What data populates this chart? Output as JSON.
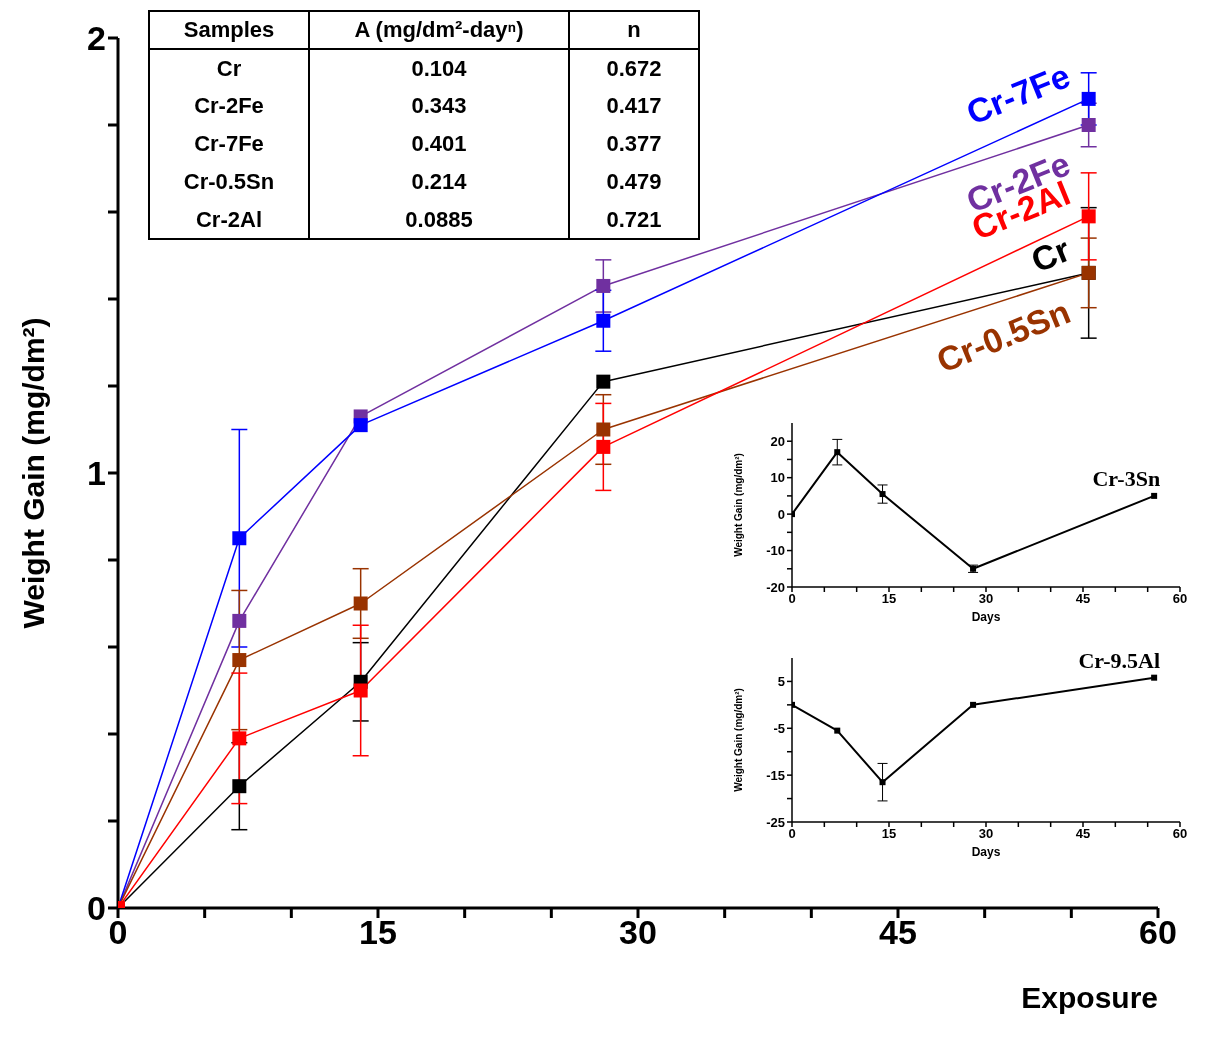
{
  "chart_data": [
    {
      "type": "line",
      "xlabel": "Exposure",
      "ylabel": "Weight Gain (mg/dm²)",
      "xlim": [
        0,
        60
      ],
      "xticks": [
        0,
        {
          "value": 5,
          "label": null
        },
        {
          "value": 10,
          "label": null
        },
        15,
        {
          "value": 20,
          "label": null
        },
        {
          "value": 25,
          "label": null
        },
        30,
        {
          "value": 35,
          "label": null
        },
        {
          "value": 40,
          "label": null
        },
        45,
        {
          "value": 50,
          "label": null
        },
        {
          "value": 55,
          "label": null
        },
        60
      ],
      "ylim": [
        0,
        2
      ],
      "yticks": [
        0,
        {
          "value": 0.2,
          "label": null
        },
        {
          "value": 0.4,
          "label": null
        },
        {
          "value": 0.6,
          "label": null
        },
        {
          "value": 0.8,
          "label": null
        },
        1,
        {
          "value": 1.2,
          "label": null
        },
        {
          "value": 1.4,
          "label": null
        },
        {
          "value": 1.6,
          "label": null
        },
        {
          "value": 1.8,
          "label": null
        },
        2
      ],
      "marker": "square",
      "x": [
        0,
        7,
        14,
        28,
        56
      ],
      "series": [
        {
          "name": "Cr",
          "color": "#000000",
          "values": [
            0,
            0.28,
            0.52,
            1.21,
            1.46
          ],
          "errors": [
            null,
            0.1,
            0.09,
            null,
            0.15
          ]
        },
        {
          "name": "Cr-2Fe",
          "color": "#7030a0",
          "values": [
            0,
            0.66,
            1.13,
            1.43,
            1.8
          ],
          "errors": [
            null,
            null,
            null,
            0.06,
            0.05
          ]
        },
        {
          "name": "Cr-7Fe",
          "color": "#0000ff",
          "values": [
            0,
            0.85,
            1.11,
            1.35,
            1.86
          ],
          "errors": [
            null,
            0.25,
            null,
            0.07,
            0.06
          ]
        },
        {
          "name": "Cr-0.5Sn",
          "color": "#993300",
          "values": [
            0,
            0.57,
            0.7,
            1.1,
            1.46
          ],
          "errors": [
            null,
            0.16,
            0.08,
            0.08,
            0.08
          ]
        },
        {
          "name": "Cr-2Al",
          "color": "#ff0000",
          "values": [
            0,
            0.39,
            0.5,
            1.06,
            1.59
          ],
          "errors": [
            null,
            0.15,
            0.15,
            0.1,
            0.1
          ]
        }
      ],
      "annotations": [
        "Samples",
        "A (mg/dm²-dayⁿ)",
        "n",
        "Cr",
        "0.104",
        "0.672",
        "Cr-2Fe",
        "0.343",
        "0.417",
        "Cr-7Fe",
        "0.401",
        "0.377",
        "Cr-0.5Sn",
        "0.214",
        "0.479",
        "Cr-2Al",
        "0.0885",
        "0.721"
      ]
    },
    {
      "type": "line",
      "xlabel": "Days",
      "ylabel": "Weight Gain (mg/dm²)",
      "xlim": [
        0,
        60
      ],
      "xticks": [
        0,
        {
          "value": 5,
          "label": null
        },
        {
          "value": 10,
          "label": null
        },
        15,
        {
          "value": 20,
          "label": null
        },
        {
          "value": 25,
          "label": null
        },
        30,
        {
          "value": 35,
          "label": null
        },
        {
          "value": 40,
          "label": null
        },
        45,
        {
          "value": 50,
          "label": null
        },
        {
          "value": 55,
          "label": null
        },
        60
      ],
      "ylim": [
        -20,
        25
      ],
      "yticks": [
        -20,
        {
          "value": -15,
          "label": null
        },
        -10,
        {
          "value": -5,
          "label": null
        },
        0,
        {
          "value": 5,
          "label": null
        },
        10,
        {
          "value": 15,
          "label": null
        },
        20
      ],
      "marker": "square",
      "x": [
        0,
        7,
        14,
        28,
        56
      ],
      "series": [
        {
          "name": "Cr-3Sn",
          "color": "#000000",
          "values": [
            0,
            17,
            5.5,
            -15,
            5
          ],
          "errors": [
            null,
            3.5,
            2.5,
            1,
            null
          ]
        }
      ]
    },
    {
      "type": "line",
      "xlabel": "Days",
      "ylabel": "Weight Gain (mg/dm²)",
      "xlim": [
        0,
        60
      ],
      "xticks": [
        0,
        {
          "value": 5,
          "label": null
        },
        {
          "value": 10,
          "label": null
        },
        15,
        {
          "value": 20,
          "label": null
        },
        {
          "value": 25,
          "label": null
        },
        30,
        {
          "value": 35,
          "label": null
        },
        {
          "value": 40,
          "label": null
        },
        45,
        {
          "value": 50,
          "label": null
        },
        {
          "value": 55,
          "label": null
        },
        60
      ],
      "ylim": [
        -25,
        10
      ],
      "yticks": [
        -25,
        {
          "value": -20,
          "label": null
        },
        -15,
        {
          "value": -10,
          "label": null
        },
        -5,
        {
          "value": 0,
          "label": null
        },
        5
      ],
      "marker": "square",
      "x": [
        0,
        7,
        14,
        28,
        56
      ],
      "series": [
        {
          "name": "Cr-9.5Al",
          "color": "#000000",
          "values": [
            0,
            -5.5,
            -16.5,
            0,
            5.8
          ],
          "errors": [
            null,
            null,
            4,
            null,
            null
          ]
        }
      ]
    }
  ]
}
